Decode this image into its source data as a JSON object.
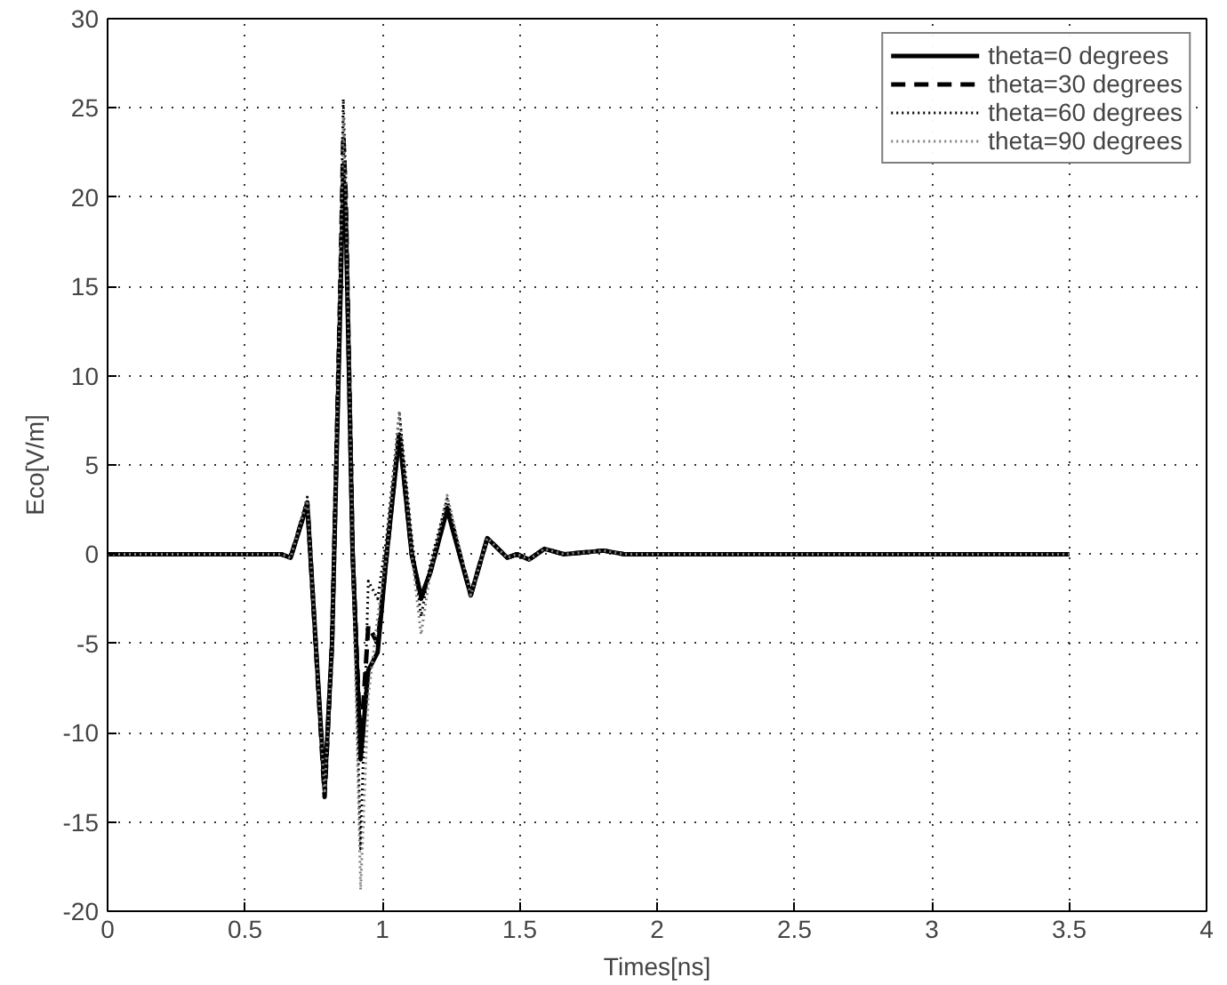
{
  "chart_data": {
    "type": "line",
    "xlabel": "Times[ns]",
    "ylabel": "Eco[V/m]",
    "x": [
      0,
      0.5,
      0.6,
      0.632,
      0.666,
      0.727,
      0.79,
      0.817,
      0.847,
      0.858,
      0.867,
      0.892,
      0.921,
      0.949,
      0.983,
      1.016,
      1.062,
      1.107,
      1.141,
      1.175,
      1.236,
      1.322,
      1.382,
      1.455,
      1.49,
      1.534,
      1.59,
      1.66,
      1.805,
      1.88,
      2.5,
      3.5
    ],
    "series": [
      {
        "name": "theta=0 degrees",
        "color": "#000000",
        "line_style": "solid",
        "values": [
          0,
          0,
          0,
          0,
          -0.2,
          2.8,
          -13.2,
          -5,
          14,
          21.2,
          19,
          0,
          -11.5,
          -6.5,
          -5.5,
          0,
          6.7,
          0,
          -2.4,
          -1,
          2.5,
          -2.3,
          0.9,
          -0.2,
          0,
          -0.3,
          0.3,
          0,
          0.2,
          0,
          0,
          0
        ]
      },
      {
        "name": "theta=30 degrees",
        "color": "#000000",
        "line_style": "dashed",
        "values": [
          0,
          0,
          0,
          0,
          -0.2,
          2.9,
          -13.6,
          -5,
          15,
          23.5,
          20,
          0,
          -10.8,
          -4,
          -5,
          0,
          6.9,
          0,
          -2.5,
          -1,
          2.6,
          -2.3,
          0.9,
          -0.2,
          0,
          -0.3,
          0.3,
          0,
          0.2,
          0,
          0,
          0
        ]
      },
      {
        "name": "theta=60 degrees",
        "color": "#000000",
        "line_style": "dotted",
        "values": [
          0,
          0,
          0,
          0,
          -0.2,
          3.2,
          -13.6,
          -4,
          16,
          25.5,
          21,
          1,
          -16.5,
          -1.5,
          -2.5,
          1,
          7.9,
          1,
          -3.5,
          -0.5,
          3.1,
          -2.3,
          0.9,
          -0.2,
          0,
          -0.3,
          0.3,
          0,
          0.2,
          0,
          0,
          0
        ]
      },
      {
        "name": "theta=90 degrees",
        "color": "#808080",
        "line_style": "dotted",
        "values": [
          0,
          0,
          0,
          0,
          -0.2,
          3,
          -13.4,
          -5,
          15,
          24.5,
          20,
          0,
          -18.8,
          -8,
          -3.5,
          0,
          8,
          0,
          -4.5,
          -1,
          3.3,
          -2.3,
          0.9,
          -0.2,
          0,
          -0.3,
          0.3,
          0,
          0.2,
          0,
          0,
          0
        ]
      }
    ],
    "xlim": [
      0,
      4
    ],
    "xticks": [
      0,
      0.5,
      1,
      1.5,
      2,
      2.5,
      3,
      3.5,
      4
    ],
    "ylim": [
      -20,
      30
    ],
    "yticks": [
      -20,
      -15,
      -10,
      -5,
      0,
      5,
      10,
      15,
      20,
      25,
      30
    ],
    "grid": true,
    "legend": "top right"
  }
}
